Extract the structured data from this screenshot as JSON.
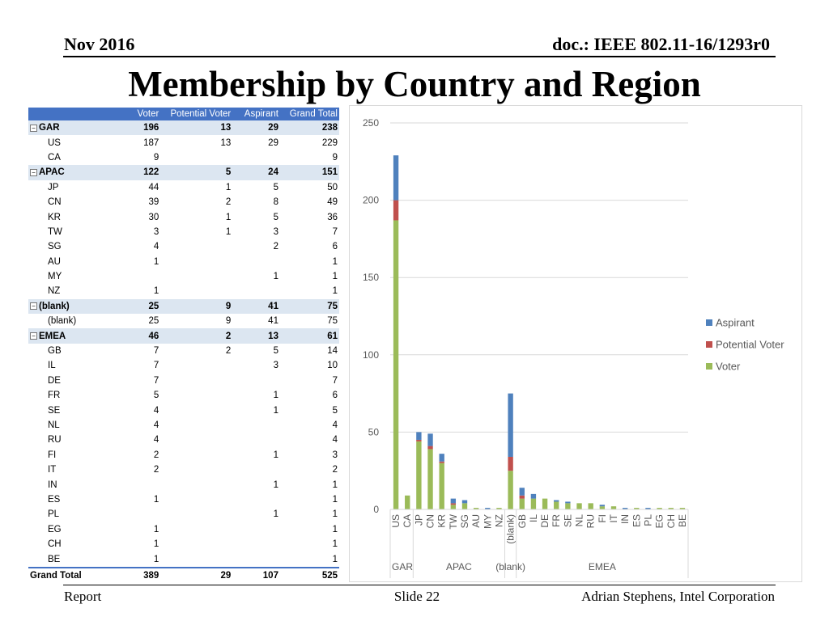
{
  "header": {
    "left": "Nov 2016",
    "right": "doc.: IEEE 802.11-16/1293r0"
  },
  "title": "Membership by Country and Region",
  "footer": {
    "left": "Report",
    "center": "Slide 22",
    "right": "Adrian Stephens, Intel Corporation"
  },
  "table": {
    "columns": [
      "Voter",
      "Potential Voter",
      "Aspirant",
      "Grand Total"
    ],
    "groups": [
      {
        "name": "GAR",
        "total": [
          "196",
          "13",
          "29",
          "238"
        ],
        "rows": [
          {
            "name": "US",
            "values": [
              "187",
              "13",
              "29",
              "229"
            ]
          },
          {
            "name": "CA",
            "values": [
              "9",
              "",
              "",
              "9"
            ]
          }
        ]
      },
      {
        "name": "APAC",
        "total": [
          "122",
          "5",
          "24",
          "151"
        ],
        "rows": [
          {
            "name": "JP",
            "values": [
              "44",
              "1",
              "5",
              "50"
            ]
          },
          {
            "name": "CN",
            "values": [
              "39",
              "2",
              "8",
              "49"
            ]
          },
          {
            "name": "KR",
            "values": [
              "30",
              "1",
              "5",
              "36"
            ]
          },
          {
            "name": "TW",
            "values": [
              "3",
              "1",
              "3",
              "7"
            ]
          },
          {
            "name": "SG",
            "values": [
              "4",
              "",
              "2",
              "6"
            ]
          },
          {
            "name": "AU",
            "values": [
              "1",
              "",
              "",
              "1"
            ]
          },
          {
            "name": "MY",
            "values": [
              "",
              "",
              "1",
              "1"
            ]
          },
          {
            "name": "NZ",
            "values": [
              "1",
              "",
              "",
              "1"
            ]
          }
        ]
      },
      {
        "name": "(blank)",
        "total": [
          "25",
          "9",
          "41",
          "75"
        ],
        "rows": [
          {
            "name": "(blank)",
            "values": [
              "25",
              "9",
              "41",
              "75"
            ]
          }
        ]
      },
      {
        "name": "EMEA",
        "total": [
          "46",
          "2",
          "13",
          "61"
        ],
        "rows": [
          {
            "name": "GB",
            "values": [
              "7",
              "2",
              "5",
              "14"
            ]
          },
          {
            "name": "IL",
            "values": [
              "7",
              "",
              "3",
              "10"
            ]
          },
          {
            "name": "DE",
            "values": [
              "7",
              "",
              "",
              "7"
            ]
          },
          {
            "name": "FR",
            "values": [
              "5",
              "",
              "1",
              "6"
            ]
          },
          {
            "name": "SE",
            "values": [
              "4",
              "",
              "1",
              "5"
            ]
          },
          {
            "name": "NL",
            "values": [
              "4",
              "",
              "",
              "4"
            ]
          },
          {
            "name": "RU",
            "values": [
              "4",
              "",
              "",
              "4"
            ]
          },
          {
            "name": "FI",
            "values": [
              "2",
              "",
              "1",
              "3"
            ]
          },
          {
            "name": "IT",
            "values": [
              "2",
              "",
              "",
              "2"
            ]
          },
          {
            "name": "IN",
            "values": [
              "",
              "",
              "1",
              "1"
            ]
          },
          {
            "name": "ES",
            "values": [
              "1",
              "",
              "",
              "1"
            ]
          },
          {
            "name": "PL",
            "values": [
              "",
              "",
              "1",
              "1"
            ]
          },
          {
            "name": "EG",
            "values": [
              "1",
              "",
              "",
              "1"
            ]
          },
          {
            "name": "CH",
            "values": [
              "1",
              "",
              "",
              "1"
            ]
          },
          {
            "name": "BE",
            "values": [
              "1",
              "",
              "",
              "1"
            ]
          }
        ]
      }
    ],
    "grand_total": {
      "label": "Grand Total",
      "values": [
        "389",
        "29",
        "107",
        "525"
      ]
    }
  },
  "chart_data": {
    "type": "bar",
    "stacked": true,
    "title": "",
    "xlabel": "",
    "ylabel": "",
    "ylim": [
      0,
      250
    ],
    "yticks": [
      0,
      50,
      100,
      150,
      200,
      250
    ],
    "categories": [
      "US",
      "CA",
      "JP",
      "CN",
      "KR",
      "TW",
      "SG",
      "AU",
      "MY",
      "NZ",
      "(blank)",
      "GB",
      "IL",
      "DE",
      "FR",
      "SE",
      "NL",
      "RU",
      "FI",
      "IT",
      "IN",
      "ES",
      "PL",
      "EG",
      "CH",
      "BE"
    ],
    "groups": [
      {
        "name": "GAR",
        "categories": [
          "US",
          "CA"
        ]
      },
      {
        "name": "APAC",
        "categories": [
          "JP",
          "CN",
          "KR",
          "TW",
          "SG",
          "AU",
          "MY",
          "NZ"
        ]
      },
      {
        "name": "(blank)",
        "categories": [
          "(blank)"
        ]
      },
      {
        "name": "EMEA",
        "categories": [
          "GB",
          "IL",
          "DE",
          "FR",
          "SE",
          "NL",
          "RU",
          "FI",
          "IT",
          "IN",
          "ES",
          "PL",
          "EG",
          "CH",
          "BE"
        ]
      }
    ],
    "series": [
      {
        "name": "Voter",
        "color": "#9bbb59",
        "values": [
          187,
          9,
          44,
          39,
          30,
          3,
          4,
          1,
          0,
          1,
          25,
          7,
          7,
          7,
          5,
          4,
          4,
          4,
          2,
          2,
          0,
          1,
          0,
          1,
          1,
          1
        ]
      },
      {
        "name": "Potential Voter",
        "color": "#c0504d",
        "values": [
          13,
          0,
          1,
          2,
          1,
          1,
          0,
          0,
          0,
          0,
          9,
          2,
          0,
          0,
          0,
          0,
          0,
          0,
          0,
          0,
          0,
          0,
          0,
          0,
          0,
          0
        ]
      },
      {
        "name": "Aspirant",
        "color": "#4f81bd",
        "values": [
          29,
          0,
          5,
          8,
          5,
          3,
          2,
          0,
          1,
          0,
          41,
          5,
          3,
          0,
          1,
          1,
          0,
          0,
          1,
          0,
          1,
          0,
          1,
          0,
          0,
          0
        ]
      }
    ],
    "legend": {
      "position": "right",
      "order": [
        "Aspirant",
        "Potential Voter",
        "Voter"
      ]
    }
  }
}
